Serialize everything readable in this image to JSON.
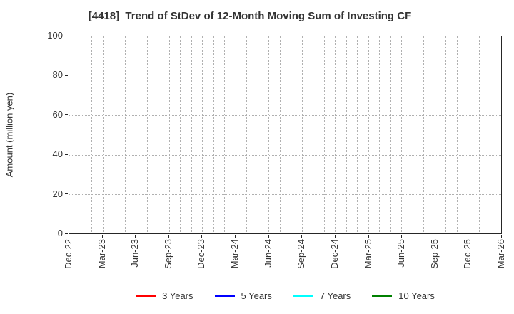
{
  "chart_data": {
    "type": "line",
    "title": "[4418]  Trend of StDev of 12-Month Moving Sum of Investing CF",
    "xlabel": "",
    "ylabel": "Amount (million yen)",
    "x_tick_labels": [
      "Dec-22",
      "Mar-23",
      "Jun-23",
      "Sep-23",
      "Dec-23",
      "Mar-24",
      "Jun-24",
      "Sep-24",
      "Dec-24",
      "Mar-25",
      "Jun-25",
      "Sep-25",
      "Dec-25",
      "Mar-26"
    ],
    "months_between_labeled_ticks": 3,
    "x_gridline_interval_months": 1,
    "y_ticks": [
      0,
      20,
      40,
      60,
      80,
      100
    ],
    "ylim": [
      0,
      100
    ],
    "grid": true,
    "grid_style": "dotted",
    "legend_position": "bottom-center",
    "series": [
      {
        "name": "3 Years",
        "color": "#ff0000",
        "values": []
      },
      {
        "name": "5 Years",
        "color": "#0000ff",
        "values": []
      },
      {
        "name": "7 Years",
        "color": "#00ffff",
        "values": []
      },
      {
        "name": "10 Years",
        "color": "#008000",
        "values": []
      }
    ],
    "note": "Plot area contains gridlines only; no data lines are drawn."
  },
  "colors": {
    "grid": "#b0b0b0",
    "spine": "#262626",
    "text": "#333333",
    "background": "#ffffff"
  }
}
